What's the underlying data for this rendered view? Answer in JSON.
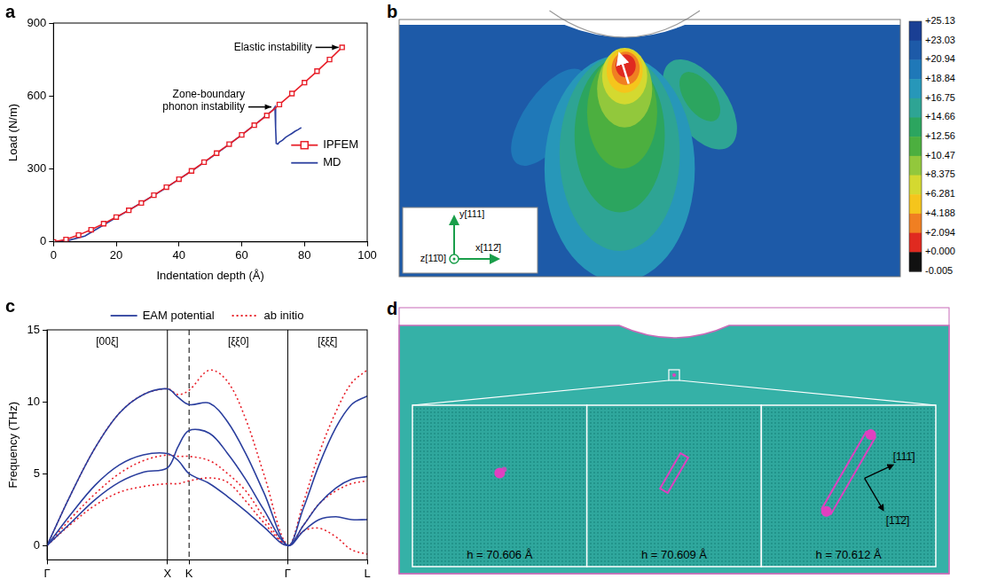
{
  "chart_data": [
    {
      "panel": "a",
      "type": "line",
      "x_label": "Indentation depth (Å)",
      "y_label": "Load (N/m)",
      "xlim": [
        0,
        100
      ],
      "xticks": [
        0,
        20,
        40,
        60,
        80,
        100
      ],
      "ylim": [
        0,
        900
      ],
      "yticks": [
        0,
        300,
        600,
        900
      ],
      "grid": false,
      "legend": "lower right",
      "series": [
        {
          "name": "IPFEM",
          "color": "#e8202a",
          "marker": "square",
          "line_style": "solid",
          "x": [
            0,
            4,
            8,
            12,
            16,
            20,
            24,
            28,
            32,
            36,
            40,
            44,
            48,
            52,
            56,
            60,
            64,
            68,
            72,
            76,
            80,
            84,
            88,
            92
          ],
          "values": [
            0,
            10,
            28,
            50,
            75,
            102,
            130,
            160,
            192,
            225,
            258,
            292,
            328,
            365,
            402,
            440,
            480,
            520,
            565,
            610,
            655,
            702,
            750,
            800
          ]
        },
        {
          "name": "MD",
          "color": "#2b3f9e",
          "marker": "none",
          "line_style": "solid",
          "x": [
            0,
            5,
            10,
            15,
            20,
            25,
            30,
            35,
            40,
            45,
            50,
            55,
            60,
            65,
            70,
            70.6,
            70.8,
            71,
            71.5,
            72,
            73,
            74,
            75,
            76,
            77,
            78,
            79
          ],
          "values": [
            0,
            7,
            24,
            62,
            100,
            138,
            176,
            215,
            258,
            300,
            345,
            392,
            440,
            490,
            543,
            555,
            470,
            405,
            402,
            410,
            418,
            430,
            438,
            446,
            455,
            462,
            470
          ]
        }
      ],
      "annotations": [
        {
          "text": "Zone-boundary phonon instability",
          "x": 70.6,
          "y": 555
        },
        {
          "text": "Elastic instability",
          "x": 92,
          "y": 800
        }
      ]
    },
    {
      "panel": "c",
      "type": "line",
      "y_label": "Frequency (THz)",
      "x": [
        0,
        0.2,
        0.4,
        0.6,
        0.8,
        1,
        1.09,
        1.18,
        1.35,
        1.5,
        1.65,
        1.8,
        2,
        2.13,
        2.26,
        2.4,
        2.53,
        2.66
      ],
      "xlim": [
        0,
        2.66
      ],
      "xticks": [
        {
          "value": 0,
          "label": "Γ"
        },
        {
          "value": 1,
          "label": "X"
        },
        {
          "value": 1.18,
          "label": "K"
        },
        {
          "value": 2,
          "label": "Γ"
        },
        {
          "value": 2.66,
          "label": "L"
        }
      ],
      "ylim": [
        -1,
        15
      ],
      "yticks": [
        0,
        5,
        10,
        15
      ],
      "grid": false,
      "legend": "top",
      "series": [
        {
          "name": "EAM potential",
          "color": "#2b3f9e",
          "line_style": "solid",
          "values": [
            [
              0,
              3.6,
              6.8,
              9.2,
              10.5,
              10.9,
              10.3,
              9.8,
              9.9,
              8.6,
              6.4,
              3.7,
              0,
              2.6,
              5.6,
              8.2,
              9.8,
              10.4
            ],
            [
              0,
              2.2,
              4.2,
              5.6,
              6.3,
              6.4,
              5.9,
              5.0,
              4.3,
              3.4,
              2.4,
              1.3,
              0,
              1.4,
              2.9,
              4.0,
              4.6,
              4.8
            ],
            [
              0,
              1.6,
              3.2,
              4.4,
              5.1,
              5.4,
              6.9,
              8.0,
              7.8,
              6.4,
              4.6,
              2.5,
              0,
              1.0,
              1.8,
              2.0,
              1.8,
              1.8
            ]
          ]
        },
        {
          "name": "ab initio",
          "color": "#e8202a",
          "line_style": "dotted",
          "values": [
            [
              0,
              3.6,
              6.8,
              9.2,
              10.5,
              10.9,
              10.5,
              10.8,
              12.2,
              11.4,
              8.8,
              5.0,
              0,
              3.0,
              6.4,
              9.3,
              11.3,
              12.2
            ],
            [
              0,
              1.9,
              3.6,
              5.0,
              5.9,
              6.3,
              6.2,
              6.2,
              5.9,
              5.0,
              3.8,
              2.0,
              0,
              1.4,
              2.9,
              3.8,
              4.3,
              4.5
            ],
            [
              0,
              1.5,
              2.8,
              3.7,
              4.1,
              4.3,
              4.3,
              4.5,
              4.7,
              4.4,
              3.1,
              1.6,
              0,
              1.0,
              1.2,
              0.6,
              -0.3,
              -0.6
            ]
          ]
        }
      ],
      "annotations": [
        {
          "text": "[00ξ]",
          "x": 0.5
        },
        {
          "text": "[ξξ0]",
          "x": 1.59
        },
        {
          "text": "[ξξξ̄]",
          "x": 2.33
        }
      ],
      "vlines": [
        {
          "x": 1,
          "line_style": "solid"
        },
        {
          "x": 1.18,
          "line_style": "dashed"
        },
        {
          "x": 2,
          "line_style": "solid"
        }
      ]
    }
  ],
  "contour_panel": {
    "panel": "b",
    "axes": [
      "y[111]",
      "x[112̄]",
      "z[11̄0]"
    ],
    "colorbar": {
      "ticks": [
        {
          "value": 25.13,
          "label": "+25.13"
        },
        {
          "value": 23.03,
          "label": "+23.03"
        },
        {
          "value": 20.94,
          "label": "+20.94"
        },
        {
          "value": 18.84,
          "label": "+18.84"
        },
        {
          "value": 16.75,
          "label": "+16.75"
        },
        {
          "value": 14.66,
          "label": "+14.66"
        },
        {
          "value": 12.56,
          "label": "+12.56"
        },
        {
          "value": 10.47,
          "label": "+10.47"
        },
        {
          "value": 8.375,
          "label": "+8.375"
        },
        {
          "value": 6.281,
          "label": "+6.281"
        },
        {
          "value": 4.188,
          "label": "+4.188"
        },
        {
          "value": 2.094,
          "label": "+2.094"
        },
        {
          "value": 0,
          "label": "+0.000"
        },
        {
          "value": -0.005,
          "label": "-0.005"
        }
      ],
      "colors": [
        "#1a3f94",
        "#1d5aa8",
        "#1f78b8",
        "#2797b9",
        "#2ea494",
        "#2ca55f",
        "#4caf3f",
        "#92c83c",
        "#d4d930",
        "#f5c51c",
        "#f07f22",
        "#e02a20",
        "#111111"
      ]
    }
  },
  "snapshot_panel": {
    "panel": "d",
    "snapshots": [
      {
        "label": "h = 70.606 Å"
      },
      {
        "label": "h = 70.609 Å"
      },
      {
        "label": "h = 70.612 Å"
      }
    ],
    "directions": [
      "[111̄]",
      "[1̄1̄2̄]"
    ]
  }
}
